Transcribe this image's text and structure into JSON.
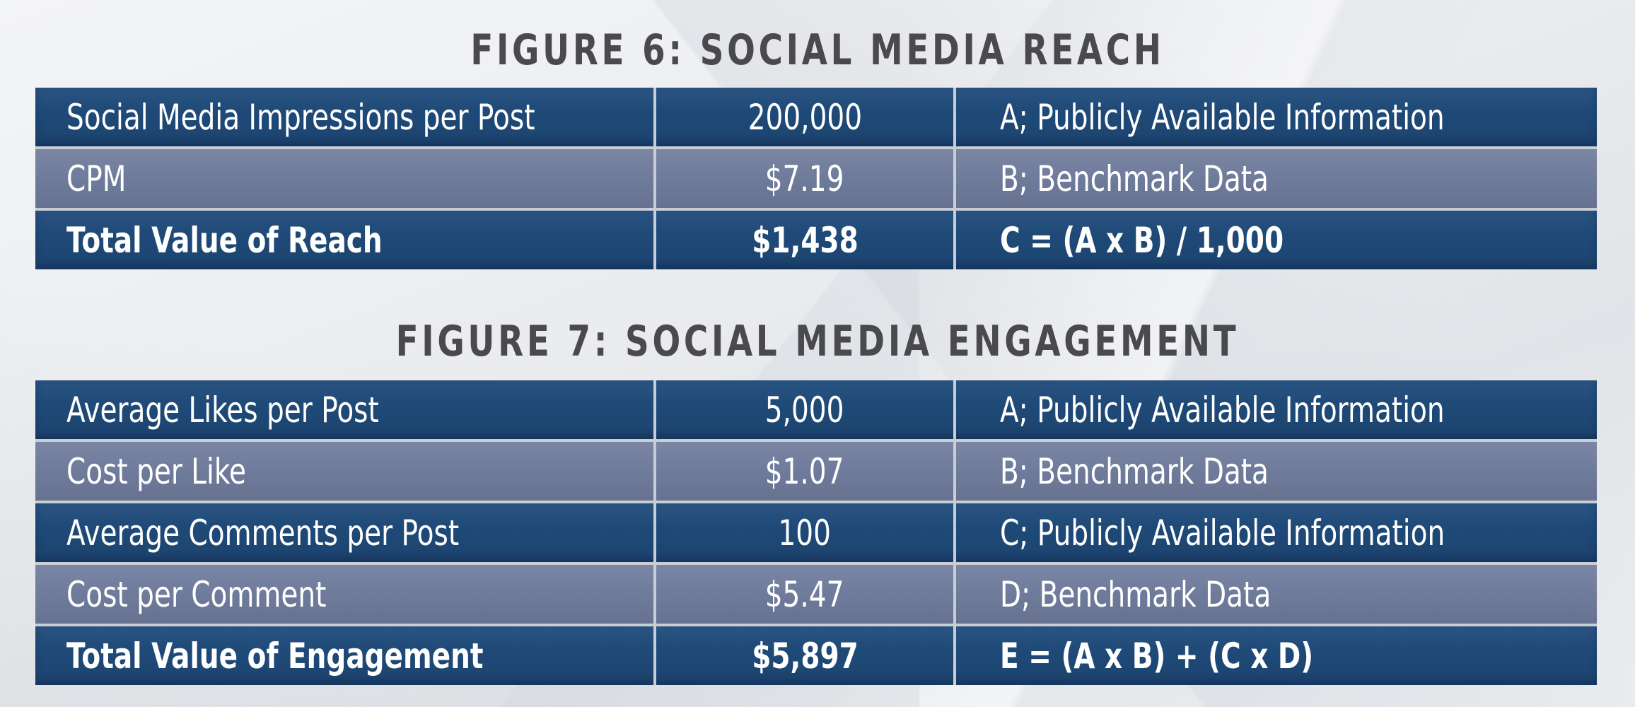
{
  "figure6": {
    "title": "FIGURE 6: SOCIAL MEDIA REACH",
    "rows": [
      {
        "label": "Social Media Impressions per Post",
        "value": "200,000",
        "source": "A; Publicly Available Information"
      },
      {
        "label": "CPM",
        "value": "$7.19",
        "source": "B; Benchmark Data"
      },
      {
        "label": "Total Value of Reach",
        "value": "$1,438",
        "source": "C = (A x B) / 1,000"
      }
    ]
  },
  "figure7": {
    "title": "FIGURE 7: SOCIAL MEDIA ENGAGEMENT",
    "rows": [
      {
        "label": "Average Likes per Post",
        "value": "5,000",
        "source": "A; Publicly Available Information"
      },
      {
        "label": "Cost per Like",
        "value": "$1.07",
        "source": "B; Benchmark Data"
      },
      {
        "label": "Average Comments per Post",
        "value": "100",
        "source": "C; Publicly Available Information"
      },
      {
        "label": "Cost per Comment",
        "value": "$5.47",
        "source": "D; Benchmark Data"
      },
      {
        "label": "Total Value of Engagement",
        "value": "$5,897",
        "source": "E = (A x B) + (C x D)"
      }
    ]
  },
  "colors": {
    "dark_row": "#1f4a78",
    "light_row": "#6f7b9b",
    "title_text": "#4a4a4d",
    "divider": "#c9cdd6"
  }
}
